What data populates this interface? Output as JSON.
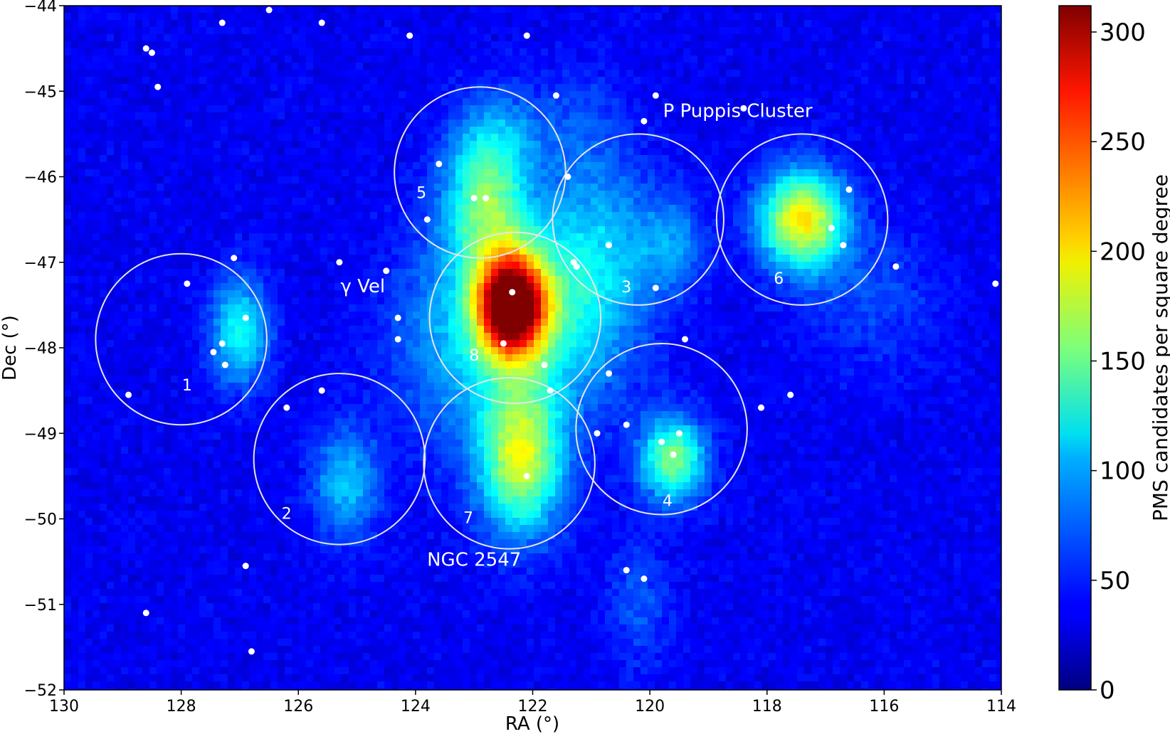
{
  "chart_data": {
    "type": "heatmap",
    "title": "",
    "xlabel": "RA (°)",
    "ylabel": "Dec (°)",
    "xlim": [
      130,
      114
    ],
    "ylim": [
      -52,
      -44
    ],
    "x_reversed": true,
    "xticks": [
      130,
      128,
      126,
      124,
      122,
      120,
      118,
      116,
      114
    ],
    "xtick_labels": [
      "130",
      "128",
      "126",
      "124",
      "122",
      "120",
      "118",
      "116",
      "114"
    ],
    "yticks": [
      -44,
      -45,
      -46,
      -47,
      -48,
      -49,
      -50,
      -51,
      -52
    ],
    "ytick_labels": [
      "−44",
      "−45",
      "−46",
      "−47",
      "−48",
      "−49",
      "−50",
      "−51",
      "−52"
    ],
    "colormap": "jet",
    "colorbar": {
      "label": "PMS candidates per square degree",
      "range": [
        0,
        312
      ],
      "ticks": [
        0,
        50,
        100,
        150,
        200,
        250,
        300
      ],
      "tick_labels": [
        "0",
        "50",
        "100",
        "150",
        "200",
        "250",
        "300"
      ]
    },
    "background_level": 35,
    "density_peaks": [
      {
        "ra": 122.35,
        "dec": -47.5,
        "amp": 280,
        "sra": 0.42,
        "sdec": 0.42
      },
      {
        "ra": 122.3,
        "dec": -47.7,
        "amp": 60,
        "sra": 1.0,
        "sdec": 0.8
      },
      {
        "ra": 122.2,
        "dec": -49.3,
        "amp": 145,
        "sra": 0.5,
        "sdec": 0.6
      },
      {
        "ra": 122.8,
        "dec": -46.3,
        "amp": 105,
        "sra": 0.5,
        "sdec": 0.55
      },
      {
        "ra": 122.6,
        "dec": -45.5,
        "amp": 40,
        "sra": 0.5,
        "sdec": 0.4
      },
      {
        "ra": 117.4,
        "dec": -46.5,
        "amp": 165,
        "sra": 0.5,
        "sdec": 0.4
      },
      {
        "ra": 119.6,
        "dec": -49.3,
        "amp": 120,
        "sra": 0.4,
        "sdec": 0.35
      },
      {
        "ra": 127.0,
        "dec": -47.8,
        "amp": 85,
        "sra": 0.35,
        "sdec": 0.45
      },
      {
        "ra": 125.2,
        "dec": -49.6,
        "amp": 65,
        "sra": 0.4,
        "sdec": 0.45
      },
      {
        "ra": 121.0,
        "dec": -47.5,
        "amp": 45,
        "sra": 0.7,
        "sdec": 0.8
      },
      {
        "ra": 120.8,
        "dec": -46.6,
        "amp": 35,
        "sra": 0.8,
        "sdec": 0.6
      },
      {
        "ra": 119.6,
        "dec": -46.8,
        "amp": 40,
        "sra": 0.4,
        "sdec": 0.4
      },
      {
        "ra": 123.5,
        "dec": -48.0,
        "amp": 30,
        "sra": 0.8,
        "sdec": 0.9
      },
      {
        "ra": 120.2,
        "dec": -51.0,
        "amp": 30,
        "sra": 0.4,
        "sdec": 0.5
      },
      {
        "ra": 121.2,
        "dec": -45.4,
        "amp": 25,
        "sra": 0.6,
        "sdec": 0.5
      },
      {
        "ra": 116.2,
        "dec": -47.4,
        "amp": 25,
        "sra": 0.8,
        "sdec": 0.6
      }
    ],
    "regions": [
      {
        "label": "1",
        "ra": 128.0,
        "dec": -47.9,
        "r": 1.0,
        "label_ra": 127.9,
        "label_dec": -48.45
      },
      {
        "label": "2",
        "ra": 125.3,
        "dec": -49.3,
        "r": 1.0,
        "label_ra": 126.2,
        "label_dec": -49.95
      },
      {
        "label": "3",
        "ra": 120.2,
        "dec": -46.5,
        "r": 1.0,
        "label_ra": 120.4,
        "label_dec": -47.3
      },
      {
        "label": "4",
        "ra": 119.8,
        "dec": -48.95,
        "r": 1.0,
        "label_ra": 119.7,
        "label_dec": -49.8
      },
      {
        "label": "5",
        "ra": 122.9,
        "dec": -45.95,
        "r": 1.0,
        "label_ra": 123.9,
        "label_dec": -46.2
      },
      {
        "label": "6",
        "ra": 117.4,
        "dec": -46.5,
        "r": 1.0,
        "label_ra": 117.8,
        "label_dec": -47.2
      },
      {
        "label": "7",
        "ra": 122.4,
        "dec": -49.35,
        "r": 1.0,
        "label_ra": 123.1,
        "label_dec": -50.0
      },
      {
        "label": "8",
        "ra": 122.3,
        "dec": -47.65,
        "r": 1.0,
        "label_ra": 123.0,
        "label_dec": -48.1
      }
    ],
    "annotations": [
      {
        "text": "γ Vel",
        "ra": 124.9,
        "dec": -47.35,
        "size": 26
      },
      {
        "text": "P Puppis Cluster",
        "ra": 118.5,
        "dec": -45.3,
        "size": 26
      },
      {
        "text": "NGC 2547",
        "ra": 123.0,
        "dec": -50.55,
        "size": 26
      }
    ],
    "stars": [
      [
        127.3,
        -44.2
      ],
      [
        126.5,
        -44.05
      ],
      [
        125.6,
        -44.2
      ],
      [
        124.1,
        -44.35
      ],
      [
        122.1,
        -44.35
      ],
      [
        128.6,
        -44.5
      ],
      [
        128.5,
        -44.55
      ],
      [
        128.4,
        -44.95
      ],
      [
        121.6,
        -45.05
      ],
      [
        119.9,
        -45.05
      ],
      [
        120.1,
        -45.35
      ],
      [
        118.4,
        -45.2
      ],
      [
        123.6,
        -45.85
      ],
      [
        121.4,
        -46.0
      ],
      [
        123.0,
        -46.25
      ],
      [
        122.8,
        -46.25
      ],
      [
        123.8,
        -46.5
      ],
      [
        116.6,
        -46.15
      ],
      [
        116.9,
        -46.6
      ],
      [
        116.7,
        -46.8
      ],
      [
        120.7,
        -46.8
      ],
      [
        121.3,
        -47.0
      ],
      [
        121.25,
        -47.05
      ],
      [
        119.9,
        -47.3
      ],
      [
        122.35,
        -47.35
      ],
      [
        115.8,
        -47.05
      ],
      [
        114.1,
        -47.25
      ],
      [
        127.1,
        -46.95
      ],
      [
        125.3,
        -47.0
      ],
      [
        124.5,
        -47.1
      ],
      [
        127.9,
        -47.25
      ],
      [
        126.9,
        -47.65
      ],
      [
        124.3,
        -47.65
      ],
      [
        124.3,
        -47.9
      ],
      [
        127.3,
        -47.95
      ],
      [
        127.45,
        -48.05
      ],
      [
        127.25,
        -48.2
      ],
      [
        122.5,
        -47.95
      ],
      [
        121.8,
        -48.2
      ],
      [
        119.4,
        -47.9
      ],
      [
        120.7,
        -48.3
      ],
      [
        121.7,
        -48.5
      ],
      [
        125.6,
        -48.5
      ],
      [
        126.2,
        -48.7
      ],
      [
        128.9,
        -48.55
      ],
      [
        118.1,
        -48.7
      ],
      [
        117.6,
        -48.55
      ],
      [
        120.9,
        -49.0
      ],
      [
        120.4,
        -48.9
      ],
      [
        119.5,
        -49.0
      ],
      [
        119.8,
        -49.1
      ],
      [
        119.6,
        -49.25
      ],
      [
        122.1,
        -49.5
      ],
      [
        126.9,
        -50.55
      ],
      [
        120.4,
        -50.6
      ],
      [
        120.1,
        -50.7
      ],
      [
        128.6,
        -51.1
      ],
      [
        126.8,
        -51.55
      ]
    ]
  }
}
